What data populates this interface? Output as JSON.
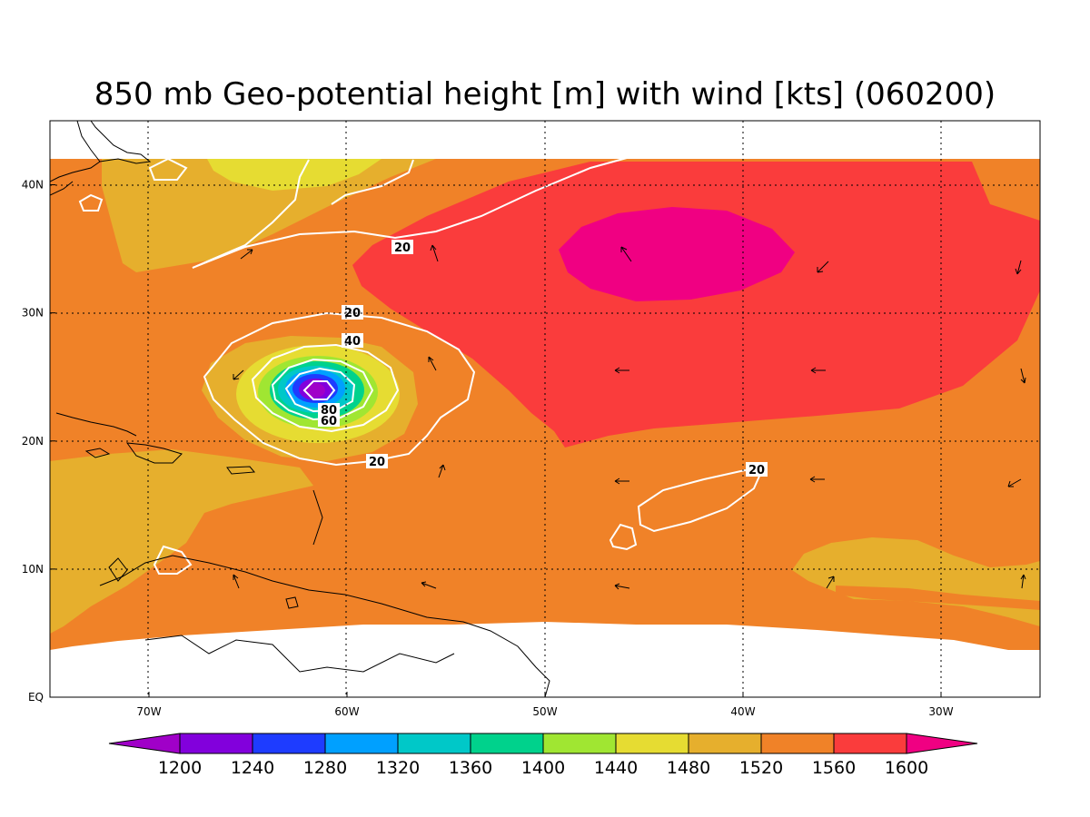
{
  "title": "850 mb Geo-potential height [m] with wind [kts] (060200)",
  "map": {
    "lon_range": [
      -75,
      -25
    ],
    "lat_range": [
      0,
      45
    ],
    "lon_ticks": [
      {
        "value": -70,
        "label": "70W"
      },
      {
        "value": -60,
        "label": "60W"
      },
      {
        "value": -50,
        "label": "50W"
      },
      {
        "value": -40,
        "label": "40W"
      },
      {
        "value": -30,
        "label": "30W"
      }
    ],
    "lat_ticks": [
      {
        "value": 0,
        "label": "EQ"
      },
      {
        "value": 10,
        "label": "10N"
      },
      {
        "value": 20,
        "label": "20N"
      },
      {
        "value": 30,
        "label": "30N"
      },
      {
        "value": 40,
        "label": "40N"
      }
    ],
    "grid": "dotted",
    "colors": {
      "h1200": "#a000c8",
      "h1240": "#8200dc",
      "h1280": "#1e3cff",
      "h1320": "#00a0ff",
      "h1360": "#00c8c8",
      "h1400": "#00d28c",
      "h1440": "#a0e632",
      "h1480": "#e6dc32",
      "h1520": "#e6af2d",
      "h1560": "#f08228",
      "h1600": "#fa3c3c",
      "h1600plus": "#f00082",
      "wind_contour": "#ffffff",
      "coastline": "#000000"
    },
    "contour_labels": [
      {
        "id": "c20-north",
        "text": "20"
      },
      {
        "id": "c20-storm-top",
        "text": "20"
      },
      {
        "id": "c40-storm",
        "text": "40"
      },
      {
        "id": "c80-storm",
        "text": "80"
      },
      {
        "id": "c60-storm",
        "text": "60"
      },
      {
        "id": "c20-storm-bottom",
        "text": "20"
      },
      {
        "id": "c20-east",
        "text": "20"
      }
    ]
  },
  "colorbar": {
    "labels": [
      "1200",
      "1240",
      "1280",
      "1320",
      "1360",
      "1400",
      "1440",
      "1480",
      "1520",
      "1560",
      "1600"
    ],
    "colors": [
      "#a000c8",
      "#8200dc",
      "#1e3cff",
      "#00a0ff",
      "#00c8c8",
      "#00d28c",
      "#a0e632",
      "#e6dc32",
      "#e6af2d",
      "#f08228",
      "#fa3c3c",
      "#f00082"
    ]
  }
}
